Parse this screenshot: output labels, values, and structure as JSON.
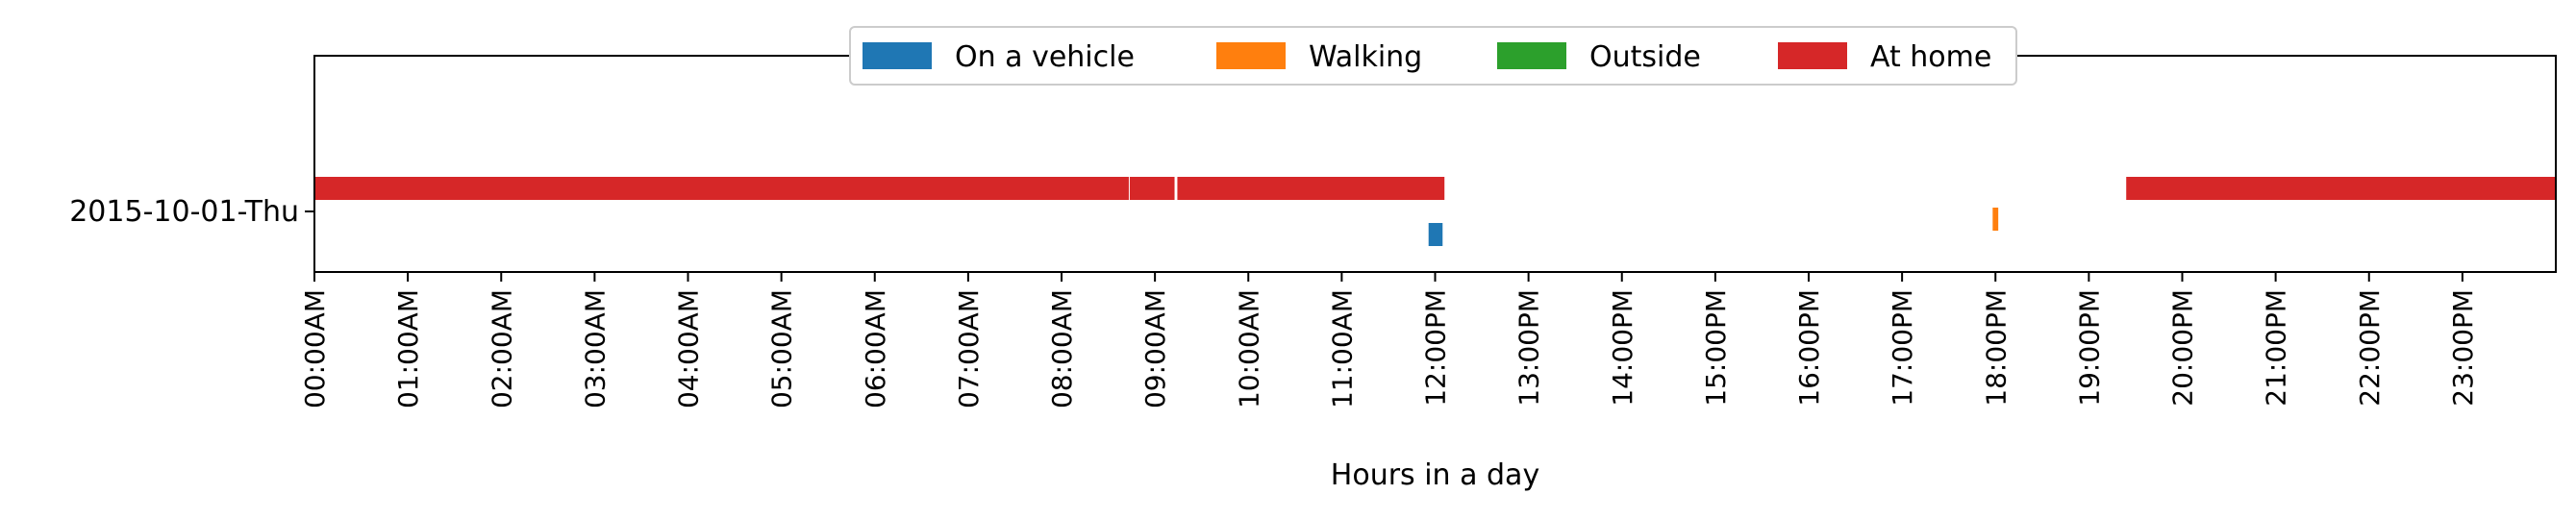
{
  "chart_data": {
    "type": "timeline",
    "xlabel": "Hours in a day",
    "x_unit": "hours",
    "xlim": [
      0,
      24
    ],
    "x_ticks": [
      {
        "value": 0,
        "label": "00:00AM"
      },
      {
        "value": 1,
        "label": "01:00AM"
      },
      {
        "value": 2,
        "label": "02:00AM"
      },
      {
        "value": 3,
        "label": "03:00AM"
      },
      {
        "value": 4,
        "label": "04:00AM"
      },
      {
        "value": 5,
        "label": "05:00AM"
      },
      {
        "value": 6,
        "label": "06:00AM"
      },
      {
        "value": 7,
        "label": "07:00AM"
      },
      {
        "value": 8,
        "label": "08:00AM"
      },
      {
        "value": 9,
        "label": "09:00AM"
      },
      {
        "value": 10,
        "label": "10:00AM"
      },
      {
        "value": 11,
        "label": "11:00AM"
      },
      {
        "value": 12,
        "label": "12:00PM"
      },
      {
        "value": 13,
        "label": "13:00PM"
      },
      {
        "value": 14,
        "label": "14:00PM"
      },
      {
        "value": 15,
        "label": "15:00PM"
      },
      {
        "value": 16,
        "label": "16:00PM"
      },
      {
        "value": 17,
        "label": "17:00PM"
      },
      {
        "value": 18,
        "label": "18:00PM"
      },
      {
        "value": 19,
        "label": "19:00PM"
      },
      {
        "value": 20,
        "label": "20:00PM"
      },
      {
        "value": 21,
        "label": "21:00PM"
      },
      {
        "value": 22,
        "label": "22:00PM"
      },
      {
        "value": 23,
        "label": "23:00PM"
      }
    ],
    "y_categories": [
      "2015-10-01-Thu"
    ],
    "legend": {
      "placement": "upper-center",
      "entries": [
        {
          "key": "vehicle",
          "label": "On a vehicle",
          "color": "#1f77b4"
        },
        {
          "key": "walking",
          "label": "Walking",
          "color": "#ff7f0e"
        },
        {
          "key": "outside",
          "label": "Outside",
          "color": "#2ca02c"
        },
        {
          "key": "home",
          "label": "At home",
          "color": "#d62728"
        }
      ]
    },
    "segments": [
      {
        "activity": "home",
        "day": "2015-10-01-Thu",
        "start": 0.0,
        "end": 8.72
      },
      {
        "activity": "home",
        "day": "2015-10-01-Thu",
        "start": 8.73,
        "end": 9.21
      },
      {
        "activity": "home",
        "day": "2015-10-01-Thu",
        "start": 9.24,
        "end": 12.1
      },
      {
        "activity": "vehicle",
        "day": "2015-10-01-Thu",
        "start": 11.93,
        "end": 12.08
      },
      {
        "activity": "walking",
        "day": "2015-10-01-Thu",
        "start": 17.97,
        "end": 18.03
      },
      {
        "activity": "home",
        "day": "2015-10-01-Thu",
        "start": 19.4,
        "end": 24.0
      }
    ]
  }
}
